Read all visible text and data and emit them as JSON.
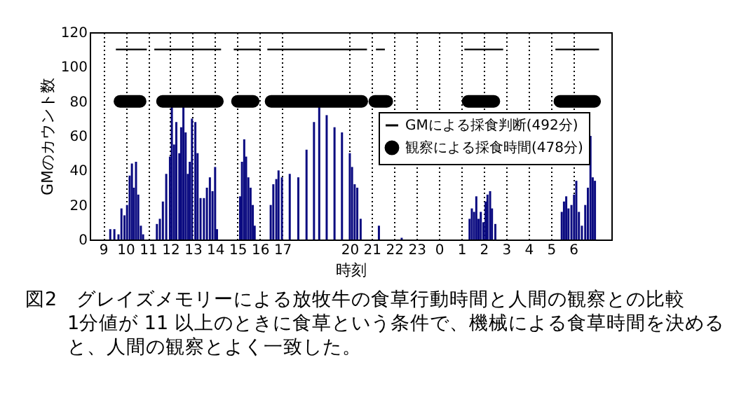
{
  "chart_data": {
    "type": "bar",
    "title": "図2　グレイズメモリーによる放牧牛の食草行動時間と人間の観察との比較",
    "annotations": [
      "1分値が 11 以上のときに食草という条件で、機械による食草時間を決めると、人間の観察とよく一致した。"
    ],
    "xlabel": "時刻",
    "ylabel": "GMのカウント数",
    "xlim": [
      "--01-01T08:24",
      "--01-02T07:42"
    ],
    "xticks": [
      {
        "value": "--01-01T09:00",
        "label": "9"
      },
      {
        "value": "--01-01T10:00",
        "label": "10"
      },
      {
        "value": "--01-01T11:00",
        "label": "11"
      },
      {
        "value": "--01-01T12:00",
        "label": "12"
      },
      {
        "value": "--01-01T13:00",
        "label": "13"
      },
      {
        "value": "--01-01T14:00",
        "label": "14"
      },
      {
        "value": "--01-01T15:00",
        "label": "15"
      },
      {
        "value": "--01-01T16:00",
        "label": "16"
      },
      {
        "value": "--01-01T17:00",
        "label": "17"
      },
      {
        "value": "--01-01T20:00",
        "label": "20"
      },
      {
        "value": "--01-01T21:00",
        "label": "21"
      },
      {
        "value": "--01-01T22:00",
        "label": "22"
      },
      {
        "value": "--01-01T23:00",
        "label": "23"
      },
      {
        "value": "--01-02T00:00",
        "label": "0"
      },
      {
        "value": "--01-02T01:00",
        "label": "1"
      },
      {
        "value": "--01-02T02:00",
        "label": "2"
      },
      {
        "value": "--01-02T03:00",
        "label": "3"
      },
      {
        "value": "--01-02T04:00",
        "label": "4"
      },
      {
        "value": "--01-02T05:00",
        "label": "5"
      },
      {
        "value": "--01-02T06:00",
        "label": "6"
      }
    ],
    "ylim": [
      0,
      120
    ],
    "yticks": [
      0,
      20,
      40,
      60,
      80,
      100,
      120
    ],
    "grid": "x",
    "legend": "right",
    "series": [
      {
        "color": "#0a0a80",
        "x": [
          "--01-01T09:19",
          "--01-01T09:30",
          "--01-01T09:41",
          "--01-01T09:49",
          "--01-01T09:57",
          "--01-01T10:04",
          "--01-01T10:11",
          "--01-01T10:17",
          "--01-01T10:22",
          "--01-01T10:28",
          "--01-01T10:34",
          "--01-01T10:41",
          "--01-01T10:47",
          "--01-01T11:24",
          "--01-01T11:32",
          "--01-01T11:40",
          "--01-01T11:49",
          "--01-01T11:59",
          "--01-01T12:04",
          "--01-01T12:10",
          "--01-01T12:16",
          "--01-01T12:24",
          "--01-01T12:29",
          "--01-01T12:35",
          "--01-01T12:41",
          "--01-01T12:47",
          "--01-01T12:52",
          "--01-01T12:58",
          "--01-01T13:07",
          "--01-01T13:13",
          "--01-01T13:21",
          "--01-01T13:30",
          "--01-01T13:38",
          "--01-01T13:46",
          "--01-01T13:53",
          "--01-01T14:00",
          "--01-01T14:05",
          "--01-01T15:07",
          "--01-01T15:12",
          "--01-01T15:18",
          "--01-01T15:23",
          "--01-01T15:29",
          "--01-01T15:35",
          "--01-01T15:41",
          "--01-01T15:46",
          "--01-01T16:29",
          "--01-01T16:36",
          "--01-01T16:44",
          "--01-01T16:50",
          "--01-01T16:59",
          "--01-01T17:20",
          "--01-01T17:43",
          "--01-01T18:05",
          "--01-01T18:25",
          "--01-01T18:39",
          "--01-01T18:59",
          "--01-01T19:20",
          "--01-01T19:40",
          "--01-01T20:01",
          "--01-01T20:07",
          "--01-01T20:14",
          "--01-01T20:21",
          "--01-01T20:30",
          "--01-01T21:19",
          "--01-01T22:20",
          "--01-02T01:22",
          "--01-02T01:28",
          "--01-02T01:34",
          "--01-02T01:40",
          "--01-02T01:46",
          "--01-02T01:52",
          "--01-02T01:59",
          "--01-02T02:05",
          "--01-02T02:10",
          "--01-02T02:17",
          "--01-02T02:22",
          "--01-02T02:31",
          "--01-02T05:29",
          "--01-02T05:35",
          "--01-02T05:41",
          "--01-02T05:47",
          "--01-02T05:55",
          "--01-02T06:02",
          "--01-02T06:08",
          "--01-02T06:15",
          "--01-02T06:23",
          "--01-02T06:32",
          "--01-02T06:39",
          "--01-02T06:46",
          "--01-02T06:52",
          "--01-02T06:58"
        ],
        "values": [
          6,
          6,
          3,
          18,
          14,
          20,
          37,
          44,
          30,
          45,
          26,
          8,
          3,
          9,
          12,
          22,
          38,
          48,
          78,
          55,
          68,
          50,
          65,
          78,
          62,
          38,
          45,
          70,
          68,
          50,
          24,
          24,
          30,
          36,
          28,
          42,
          6,
          25,
          45,
          58,
          48,
          36,
          30,
          20,
          8,
          20,
          32,
          35,
          40,
          36,
          38,
          36,
          52,
          68,
          78,
          72,
          65,
          62,
          50,
          42,
          32,
          30,
          12,
          8,
          1,
          12,
          18,
          16,
          25,
          12,
          16,
          10,
          22,
          26,
          28,
          18,
          9,
          16,
          22,
          25,
          18,
          20,
          26,
          34,
          16,
          8,
          20,
          30,
          60,
          36,
          34
        ]
      },
      {
        "type": "line",
        "name": "GMによる採食判断(492分)",
        "color": "#000000",
        "marker": "none",
        "x": [
          "--01-01T09:34",
          "--01-01T10:57",
          "--01-01T11:06",
          "--01-01T11:17",
          "--01-01T14:16",
          "--01-01T14:30",
          "--01-01T14:50",
          "--01-01T16:02",
          "--01-01T16:12",
          "--01-01T16:20",
          "--01-01T20:47",
          "--01-01T21:00",
          "--01-01T21:11",
          "--01-01T21:35",
          "--01-01T23:00",
          "--01-02T01:08",
          "--01-02T02:52",
          "--01-02T04:00",
          "--01-02T05:12",
          "--01-02T07:09"
        ],
        "values": [
          110,
          110,
          null,
          110,
          110,
          null,
          110,
          110,
          null,
          110,
          110,
          null,
          110,
          110,
          null,
          110,
          110,
          null,
          110,
          110
        ]
      },
      {
        "type": "line",
        "name": "観察による採食時間(478分)",
        "color": "#000000",
        "marker": "circle",
        "x": [
          "--01-01T09:45",
          "--01-01T10:39",
          "--01-01T11:06",
          "--01-01T11:39",
          "--01-01T14:06",
          "--01-01T14:30",
          "--01-01T15:00",
          "--01-01T15:42",
          "--01-01T16:06",
          "--01-01T16:30",
          "--01-01T20:33",
          "--01-01T21:00",
          "--01-01T21:08",
          "--01-01T21:40",
          "--01-01T23:00",
          "--01-02T01:18",
          "--01-02T02:27",
          "--01-02T04:00",
          "--01-02T05:24",
          "--01-02T06:57"
        ],
        "values": [
          80,
          80,
          null,
          80,
          80,
          null,
          80,
          80,
          null,
          80,
          80,
          null,
          80,
          80,
          null,
          80,
          80,
          null,
          80,
          80
        ]
      }
    ]
  }
}
